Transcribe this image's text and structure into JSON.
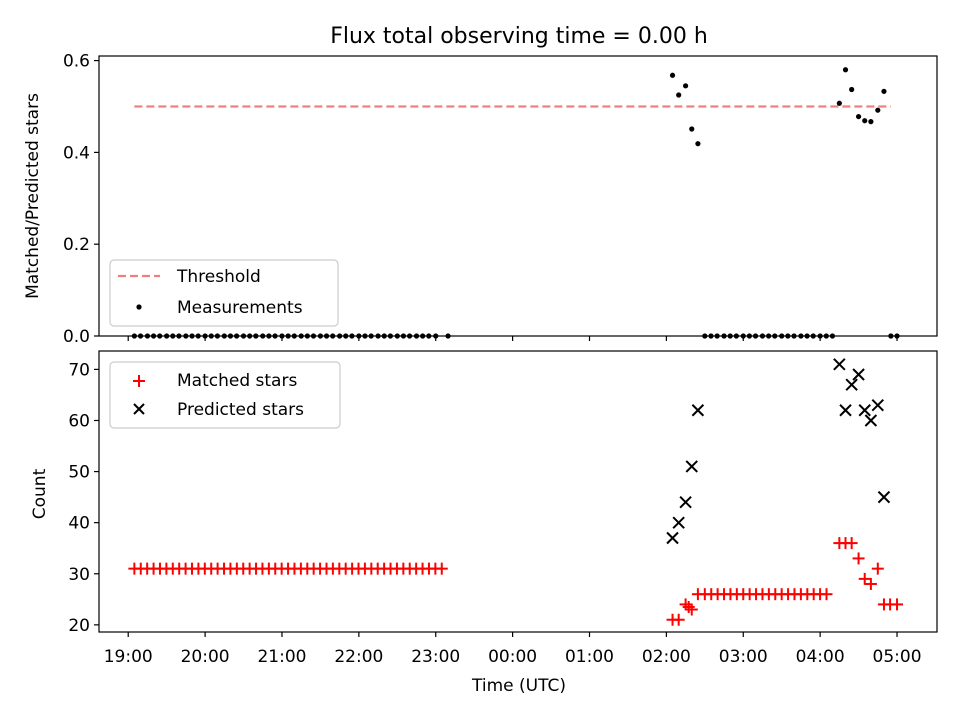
{
  "chart_data": [
    {
      "type": "scatter",
      "title": "Flux total observing time = 0.00 h",
      "xlabel": "",
      "ylabel": "Matched/Predicted stars",
      "xlim": [
        -0.38,
        10.52
      ],
      "ylim": [
        0.0,
        0.61
      ],
      "yticks": [
        0.0,
        0.2,
        0.4,
        0.6
      ],
      "ytick_labels": [
        "0.0",
        "0.2",
        "0.4",
        "0.6"
      ],
      "legend_position": "lower-left",
      "threshold": {
        "name": "Threshold",
        "x": [
          0.08,
          9.92
        ],
        "value": 0.5,
        "color": "#f08080"
      },
      "measurements": {
        "name": "Measurements",
        "color": "#000000",
        "zero_x": [
          0.08,
          0.16,
          0.25,
          0.33,
          0.41,
          0.5,
          0.58,
          0.66,
          0.75,
          0.83,
          0.91,
          1.0,
          1.08,
          1.16,
          1.25,
          1.33,
          1.41,
          1.5,
          1.58,
          1.66,
          1.75,
          1.83,
          1.91,
          2.0,
          2.08,
          2.16,
          2.25,
          2.33,
          2.41,
          2.5,
          2.58,
          2.66,
          2.75,
          2.83,
          2.91,
          3.0,
          3.08,
          3.16,
          3.25,
          3.33,
          3.41,
          3.5,
          3.58,
          3.66,
          3.75,
          3.83,
          3.91,
          4.0,
          4.16,
          7.5,
          7.58,
          7.66,
          7.75,
          7.83,
          7.91,
          8.0,
          8.08,
          8.16,
          8.25,
          8.33,
          8.41,
          8.5,
          8.58,
          8.66,
          8.75,
          8.83,
          8.91,
          9.0,
          9.08,
          9.16,
          9.92,
          10.0
        ],
        "points": [
          {
            "x": 7.08,
            "y": 0.568
          },
          {
            "x": 7.16,
            "y": 0.525
          },
          {
            "x": 7.25,
            "y": 0.545
          },
          {
            "x": 7.33,
            "y": 0.451
          },
          {
            "x": 7.41,
            "y": 0.419
          },
          {
            "x": 9.25,
            "y": 0.507
          },
          {
            "x": 9.33,
            "y": 0.58
          },
          {
            "x": 9.41,
            "y": 0.537
          },
          {
            "x": 9.5,
            "y": 0.478
          },
          {
            "x": 9.58,
            "y": 0.469
          },
          {
            "x": 9.66,
            "y": 0.467
          },
          {
            "x": 9.75,
            "y": 0.492
          },
          {
            "x": 9.83,
            "y": 0.533
          }
        ]
      }
    },
    {
      "type": "scatter",
      "xlabel": "Time (UTC)",
      "ylabel": "Count",
      "xlim": [
        -0.38,
        10.52
      ],
      "ylim": [
        18.6,
        73.6
      ],
      "yticks": [
        20,
        30,
        40,
        50,
        60,
        70
      ],
      "xticks": [
        0,
        1,
        2,
        3,
        4,
        5,
        6,
        7,
        8,
        9,
        10
      ],
      "xtick_labels": [
        "19:00",
        "20:00",
        "21:00",
        "22:00",
        "23:00",
        "00:00",
        "01:00",
        "02:00",
        "03:00",
        "04:00",
        "05:00"
      ],
      "legend_position": "upper-left",
      "series": [
        {
          "name": "Matched stars",
          "marker": "plus",
          "color": "#ff0000",
          "constant_runs": [
            {
              "from": 0.08,
              "to": 4.16,
              "step": 0.0833,
              "value": 31
            },
            {
              "from": 7.5,
              "to": 9.16,
              "step": 0.0833,
              "value": 26
            }
          ],
          "points": [
            {
              "x": 7.08,
              "y": 21
            },
            {
              "x": 7.16,
              "y": 21
            },
            {
              "x": 7.25,
              "y": 24
            },
            {
              "x": 7.29,
              "y": 23.5
            },
            {
              "x": 7.33,
              "y": 23
            },
            {
              "x": 7.41,
              "y": 26
            },
            {
              "x": 9.25,
              "y": 36
            },
            {
              "x": 9.33,
              "y": 36
            },
            {
              "x": 9.41,
              "y": 36
            },
            {
              "x": 9.5,
              "y": 33
            },
            {
              "x": 9.58,
              "y": 29
            },
            {
              "x": 9.66,
              "y": 28
            },
            {
              "x": 9.75,
              "y": 31
            },
            {
              "x": 9.83,
              "y": 24
            },
            {
              "x": 9.91,
              "y": 24
            },
            {
              "x": 10.0,
              "y": 24
            }
          ]
        },
        {
          "name": "Predicted stars",
          "marker": "x",
          "color": "#000000",
          "points": [
            {
              "x": 7.08,
              "y": 37
            },
            {
              "x": 7.16,
              "y": 40
            },
            {
              "x": 7.25,
              "y": 44
            },
            {
              "x": 7.33,
              "y": 51
            },
            {
              "x": 7.41,
              "y": 62
            },
            {
              "x": 9.25,
              "y": 71
            },
            {
              "x": 9.33,
              "y": 62
            },
            {
              "x": 9.41,
              "y": 67
            },
            {
              "x": 9.5,
              "y": 69
            },
            {
              "x": 9.58,
              "y": 62
            },
            {
              "x": 9.66,
              "y": 60
            },
            {
              "x": 9.75,
              "y": 63
            },
            {
              "x": 9.83,
              "y": 45
            }
          ]
        }
      ]
    }
  ]
}
